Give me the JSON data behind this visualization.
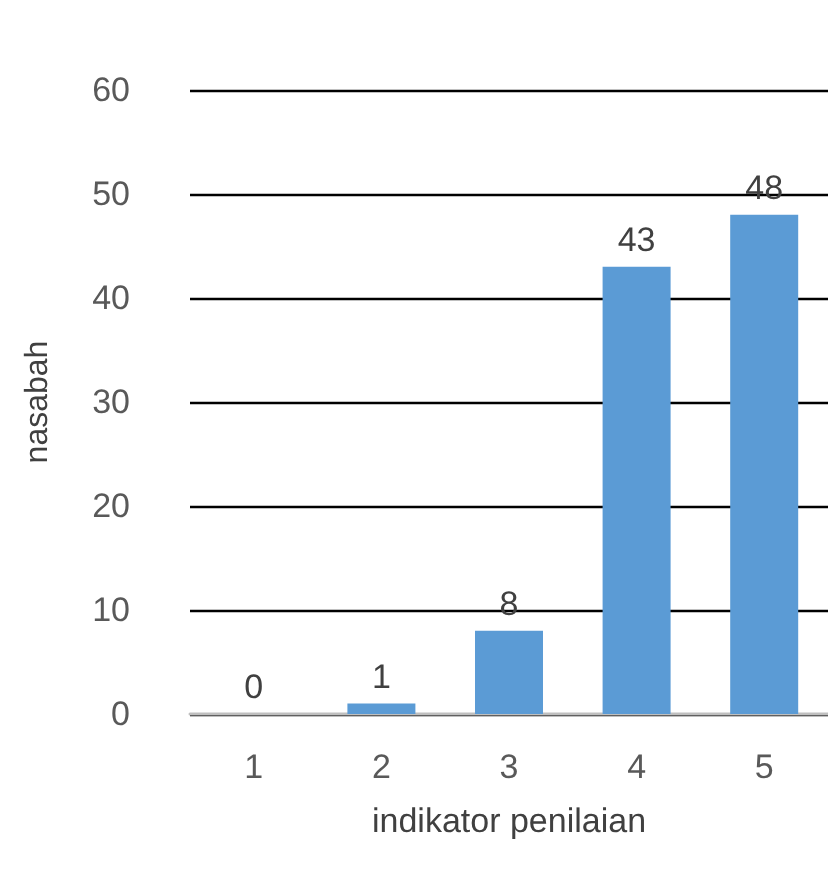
{
  "chart_data": {
    "type": "bar",
    "xlabel": "indikator penilaian",
    "ylabel": "nasabah",
    "categories": [
      "1",
      "2",
      "3",
      "4",
      "5"
    ],
    "values": [
      0,
      1,
      8,
      43,
      48
    ],
    "color": "#5b9bd5",
    "ylim": [
      0,
      60
    ],
    "yticks": [
      0,
      10,
      20,
      30,
      40,
      50,
      60
    ],
    "grid": "y",
    "data_labels": true
  }
}
